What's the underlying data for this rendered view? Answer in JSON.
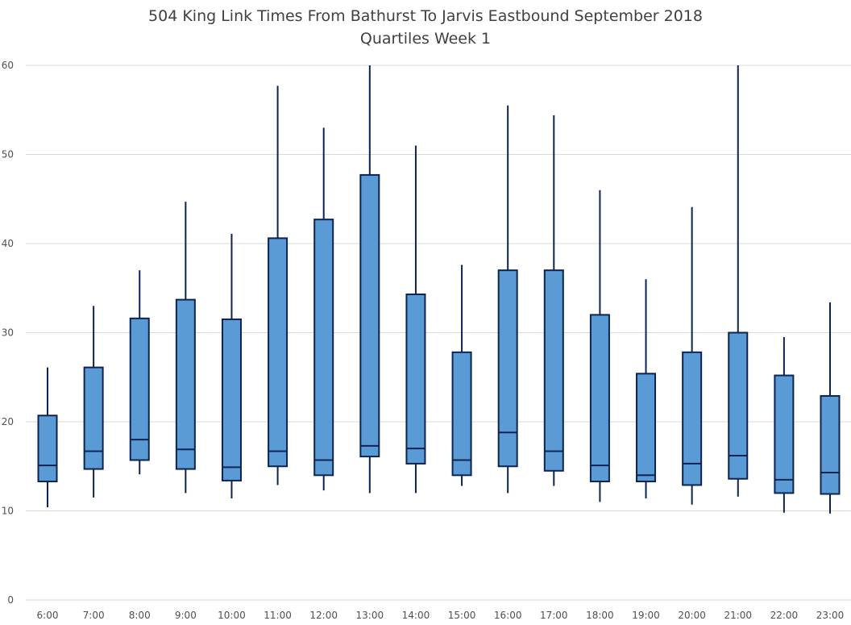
{
  "chart_data": {
    "type": "boxplot",
    "title": "504 King Link Times From Bathurst To Jarvis Eastbound September 2018",
    "subtitle": "Quartiles Week 1",
    "xlabel": "",
    "ylabel": "",
    "ylim": [
      0,
      60
    ],
    "yticks": [
      0,
      10,
      20,
      30,
      40,
      50,
      60
    ],
    "grid": true,
    "legend": "none",
    "colors": {
      "box_fill": "#5b9bd5",
      "box_stroke": "#0d2351",
      "grid": "#d9d9d9"
    },
    "categories": [
      "6:00",
      "7:00",
      "8:00",
      "9:00",
      "10:00",
      "11:00",
      "12:00",
      "13:00",
      "14:00",
      "15:00",
      "16:00",
      "17:00",
      "18:00",
      "19:00",
      "20:00",
      "21:00",
      "22:00",
      "23:00"
    ],
    "min": [
      10.4,
      11.5,
      14.1,
      12.0,
      11.4,
      12.9,
      12.3,
      12.0,
      12.0,
      12.8,
      12.0,
      12.8,
      11.0,
      11.4,
      10.7,
      11.6,
      9.8,
      9.7
    ],
    "q1": [
      13.3,
      14.7,
      15.7,
      14.7,
      13.4,
      15.0,
      14.0,
      16.1,
      15.3,
      14.0,
      15.0,
      14.5,
      13.3,
      13.3,
      12.9,
      13.6,
      12.0,
      11.9
    ],
    "median": [
      15.1,
      16.7,
      18.0,
      16.9,
      14.9,
      16.7,
      15.7,
      17.3,
      17.0,
      15.7,
      18.8,
      16.7,
      15.1,
      14.0,
      15.3,
      16.2,
      13.5,
      14.3
    ],
    "q3": [
      20.7,
      26.1,
      31.6,
      33.7,
      31.5,
      40.6,
      42.7,
      47.7,
      34.3,
      27.8,
      37.0,
      37.0,
      32.0,
      25.4,
      27.8,
      30.0,
      25.2,
      22.9
    ],
    "max": [
      26.1,
      33.0,
      37.0,
      44.7,
      41.1,
      57.7,
      53.0,
      60.0,
      51.0,
      37.6,
      55.5,
      54.4,
      46.0,
      36.0,
      44.1,
      60.0,
      29.5,
      33.4
    ]
  }
}
